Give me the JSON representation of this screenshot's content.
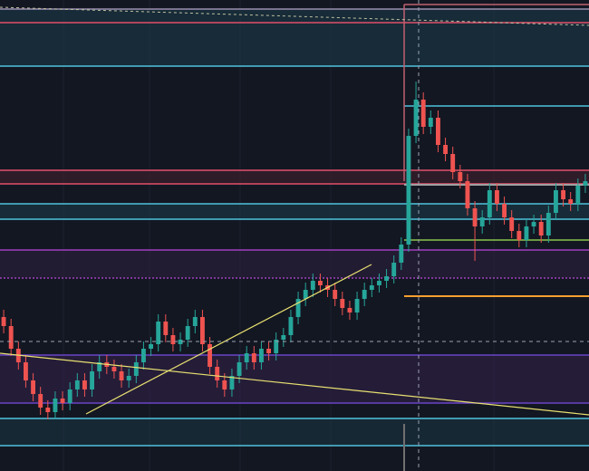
{
  "chart_data": {
    "type": "candlestick",
    "ylim": [
      0,
      520
    ],
    "up_color": "#26a69a",
    "down_color": "#ef5350",
    "open": [
      170,
      160,
      135,
      120,
      100,
      85,
      70,
      65,
      80,
      75,
      90,
      100,
      90,
      110,
      120,
      115,
      110,
      100,
      105,
      120,
      135,
      140,
      165,
      150,
      140,
      145,
      160,
      170,
      140,
      115,
      100,
      90,
      105,
      120,
      130,
      120,
      135,
      130,
      145,
      150,
      170,
      190,
      200,
      210,
      205,
      200,
      190,
      180,
      175,
      190,
      200,
      205,
      210,
      215,
      230,
      250,
      370,
      410,
      380,
      390,
      360,
      350,
      330,
      320,
      290,
      270,
      280,
      310,
      295,
      280,
      265,
      255,
      270,
      275,
      260,
      285,
      310,
      300,
      295,
      315
    ],
    "high": [
      178,
      168,
      143,
      128,
      108,
      93,
      78,
      88,
      88,
      98,
      108,
      108,
      118,
      128,
      128,
      123,
      118,
      113,
      128,
      143,
      148,
      173,
      173,
      158,
      153,
      168,
      178,
      178,
      148,
      123,
      108,
      113,
      128,
      138,
      138,
      143,
      143,
      153,
      158,
      178,
      198,
      208,
      218,
      218,
      213,
      208,
      198,
      188,
      198,
      208,
      213,
      218,
      223,
      238,
      258,
      378,
      430,
      418,
      398,
      398,
      368,
      358,
      338,
      328,
      298,
      288,
      318,
      318,
      303,
      288,
      273,
      278,
      283,
      283,
      293,
      318,
      318,
      308,
      323,
      328
    ],
    "low": [
      152,
      127,
      112,
      92,
      77,
      62,
      57,
      57,
      67,
      67,
      82,
      82,
      82,
      102,
      107,
      102,
      92,
      92,
      97,
      112,
      127,
      132,
      142,
      132,
      132,
      137,
      152,
      132,
      107,
      92,
      82,
      82,
      97,
      112,
      112,
      112,
      122,
      122,
      137,
      142,
      162,
      182,
      192,
      197,
      192,
      182,
      172,
      167,
      167,
      182,
      192,
      197,
      202,
      207,
      222,
      242,
      362,
      372,
      372,
      352,
      342,
      322,
      312,
      282,
      232,
      262,
      272,
      287,
      272,
      257,
      247,
      247,
      262,
      252,
      252,
      277,
      292,
      287,
      287,
      307
    ],
    "close": [
      160,
      135,
      120,
      100,
      85,
      70,
      65,
      80,
      75,
      90,
      100,
      90,
      110,
      120,
      115,
      110,
      100,
      105,
      120,
      135,
      140,
      165,
      150,
      140,
      145,
      160,
      170,
      140,
      115,
      100,
      90,
      105,
      120,
      130,
      120,
      135,
      130,
      145,
      150,
      170,
      190,
      200,
      210,
      205,
      200,
      190,
      180,
      175,
      190,
      200,
      205,
      210,
      215,
      230,
      250,
      370,
      410,
      380,
      390,
      360,
      350,
      330,
      320,
      290,
      270,
      280,
      310,
      295,
      280,
      265,
      255,
      270,
      275,
      260,
      285,
      310,
      300,
      295,
      315,
      320
    ]
  }
}
